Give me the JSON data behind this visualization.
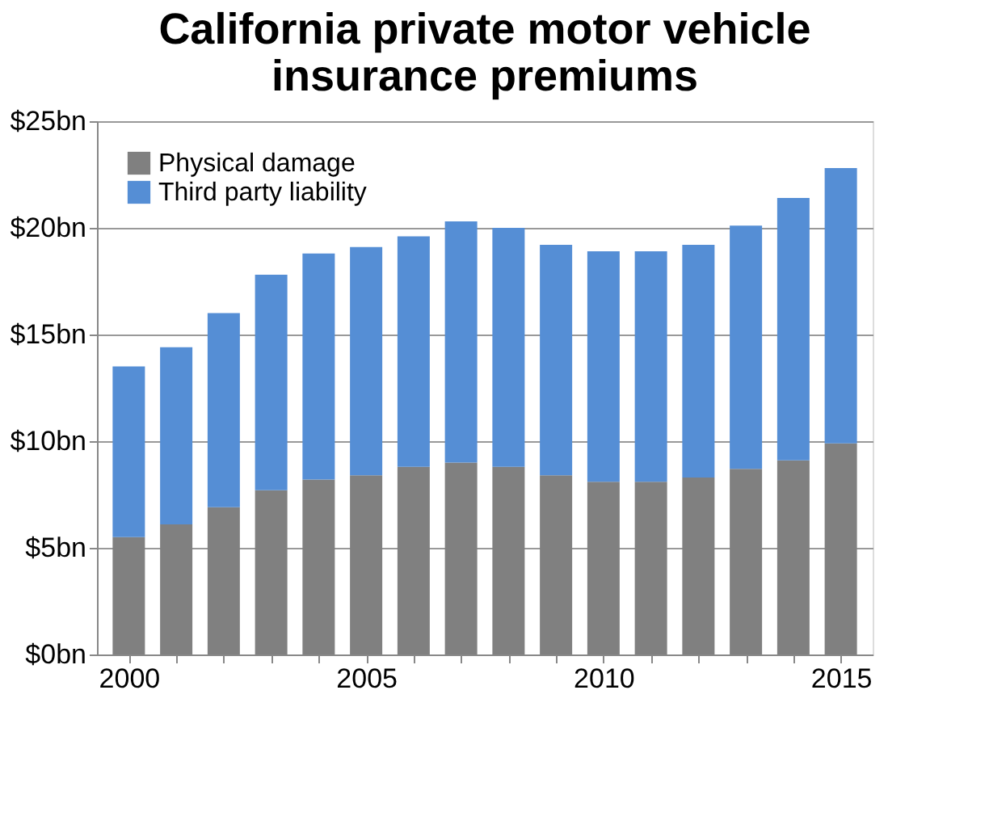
{
  "chart_data": {
    "type": "bar",
    "title": "California private motor vehicle insurance premiums",
    "stacked": true,
    "categories": [
      "2000",
      null,
      null,
      null,
      null,
      "2005",
      null,
      null,
      null,
      null,
      "2010",
      null,
      null,
      null,
      null,
      "2015"
    ],
    "series": [
      {
        "name": "Physical damage",
        "color": "#808080",
        "values": [
          5.5,
          6.1,
          6.9,
          7.7,
          8.2,
          8.4,
          8.8,
          9.0,
          8.8,
          8.4,
          8.1,
          8.1,
          8.3,
          8.7,
          9.1,
          9.9
        ]
      },
      {
        "name": "Third party liability",
        "color": "#558ed5",
        "values": [
          8.0,
          8.3,
          9.1,
          10.1,
          10.6,
          10.7,
          10.8,
          11.3,
          11.2,
          10.8,
          10.8,
          10.8,
          10.9,
          11.4,
          12.3,
          12.9
        ]
      }
    ],
    "ylim": [
      0,
      25
    ],
    "yticks": [
      {
        "value": 0,
        "label": "$0bn"
      },
      {
        "value": 5,
        "label": "$5bn"
      },
      {
        "value": 10,
        "label": "$10bn"
      },
      {
        "value": 15,
        "label": "$15bn"
      },
      {
        "value": 20,
        "label": "$20bn"
      },
      {
        "value": 25,
        "label": "$25bn"
      }
    ],
    "grid": "y",
    "legend": "top left"
  }
}
